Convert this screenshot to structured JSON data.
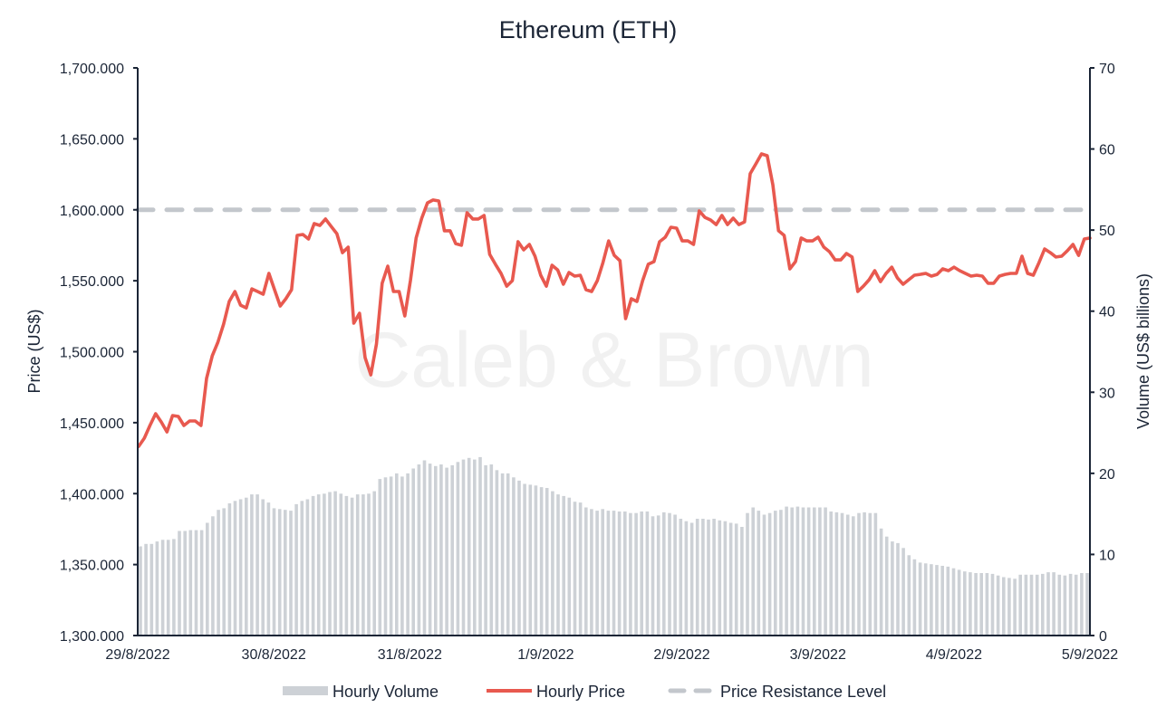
{
  "chart_data": {
    "type": "bar+line",
    "title": "Ethereum (ETH)",
    "watermark": "Caleb & Brown",
    "xlabel": "",
    "ylabel_left": "Price (US$)",
    "ylabel_right": "Volume (US$ billions)",
    "ylim_left": [
      1300,
      1700
    ],
    "ylim_right": [
      0,
      70
    ],
    "yticks_left": [
      "1,300.000",
      "1,350.000",
      "1,400.000",
      "1,450.000",
      "1,500.000",
      "1,550.000",
      "1,600.000",
      "1,650.000",
      "1,700.000"
    ],
    "yticks_right": [
      "0",
      "10",
      "20",
      "30",
      "40",
      "50",
      "60",
      "70"
    ],
    "xticks": [
      "29/8/2022",
      "30/8/2022",
      "31/8/2022",
      "1/9/2022",
      "2/9/2022",
      "3/9/2022",
      "4/9/2022",
      "5/9/2022"
    ],
    "x_range_hours": [
      0,
      168
    ],
    "grid": false,
    "legend_position": "bottom-center",
    "colors": {
      "price": "#e8594f",
      "volume": "#cdd1d6",
      "resistance": "#c3c7cc",
      "axis": "#1b2536"
    },
    "series": [
      {
        "name": "Hourly Volume",
        "type": "bar",
        "unit": "US$ billions",
        "values": [
          11.0,
          11.3,
          11.3,
          11.6,
          11.8,
          11.8,
          11.9,
          12.9,
          12.9,
          13.0,
          13.0,
          13.0,
          13.9,
          14.7,
          15.5,
          15.7,
          16.3,
          16.6,
          16.8,
          17.0,
          17.4,
          17.4,
          16.8,
          16.4,
          15.7,
          15.6,
          15.5,
          15.4,
          16.2,
          16.6,
          16.8,
          17.2,
          17.4,
          17.5,
          17.7,
          17.8,
          17.5,
          17.2,
          17.0,
          17.4,
          17.4,
          17.5,
          17.8,
          19.3,
          19.5,
          19.6,
          20.0,
          19.6,
          20.0,
          20.6,
          21.1,
          21.6,
          21.2,
          20.9,
          21.1,
          20.7,
          21.0,
          21.4,
          21.7,
          21.9,
          21.7,
          22.0,
          21.0,
          21.1,
          20.4,
          20.0,
          20.0,
          19.5,
          19.1,
          18.7,
          18.6,
          18.5,
          18.3,
          18.2,
          17.8,
          17.4,
          17.2,
          17.0,
          16.5,
          16.4,
          15.8,
          15.6,
          15.4,
          15.6,
          15.4,
          15.4,
          15.3,
          15.3,
          15.1,
          15.1,
          15.3,
          15.3,
          14.7,
          14.8,
          15.2,
          15.1,
          14.9,
          14.4,
          14.1,
          13.9,
          14.4,
          14.4,
          14.3,
          14.4,
          14.2,
          14.1,
          13.9,
          13.8,
          13.4,
          15.1,
          15.8,
          15.4,
          14.9,
          15.1,
          15.4,
          15.5,
          15.9,
          15.8,
          15.9,
          15.8,
          15.8,
          15.8,
          15.8,
          15.8,
          15.3,
          15.2,
          15.1,
          14.9,
          14.7,
          15.1,
          15.2,
          15.1,
          15.1,
          13.2,
          12.2,
          11.6,
          11.4,
          10.8,
          9.9,
          9.4,
          9.0,
          8.9,
          8.8,
          8.7,
          8.6,
          8.5,
          8.3,
          8.1,
          7.9,
          7.8,
          7.7,
          7.7,
          7.7,
          7.6,
          7.4,
          7.2,
          7.1,
          7.0,
          7.5,
          7.5,
          7.5,
          7.5,
          7.6,
          7.8,
          7.8,
          7.5,
          7.4,
          7.6,
          7.5,
          7.7,
          7.7
        ]
      },
      {
        "name": "Hourly Price",
        "type": "line",
        "unit": "US$",
        "values": [
          1433.3,
          1439.1,
          1448,
          1456.3,
          1450.5,
          1443.5,
          1455,
          1454.4,
          1448,
          1451.2,
          1451.2,
          1448,
          1481.2,
          1497.1,
          1506.7,
          1519.4,
          1535.4,
          1542.4,
          1532.8,
          1530.9,
          1544.3,
          1542.4,
          1540.5,
          1555.2,
          1543.7,
          1532.2,
          1537.3,
          1543.7,
          1582,
          1582.6,
          1579.4,
          1590.3,
          1589,
          1593.5,
          1588.3,
          1583.2,
          1569.8,
          1573.7,
          1520.1,
          1527.1,
          1495.8,
          1483.7,
          1505.4,
          1548.2,
          1560.3,
          1542.4,
          1542.4,
          1525.2,
          1550.1,
          1580.1,
          1594.1,
          1604.9,
          1606.9,
          1606.2,
          1585.2,
          1585.2,
          1576.2,
          1575,
          1597.9,
          1593.5,
          1593.5,
          1596,
          1568.6,
          1561.6,
          1555.2,
          1546.2,
          1550.1,
          1577.5,
          1571.8,
          1575.6,
          1567.3,
          1553.9,
          1546.2,
          1560.9,
          1557.7,
          1547.5,
          1555.8,
          1553.3,
          1553.9,
          1543.7,
          1542.4,
          1550.1,
          1562.8,
          1578.1,
          1567.9,
          1564.1,
          1523.3,
          1537.3,
          1535.4,
          1550.1,
          1561.6,
          1563.5,
          1577.5,
          1580.7,
          1587.7,
          1587.1,
          1578.1,
          1578.1,
          1575.6,
          1599.2,
          1594.7,
          1592.8,
          1589.6,
          1596,
          1589.6,
          1594.1,
          1589.6,
          1591.5,
          1625.4,
          1632.4,
          1639.4,
          1638.1,
          1617.7,
          1585.2,
          1582,
          1558.4,
          1563.5,
          1580.1,
          1578.1,
          1578.1,
          1580.7,
          1573.7,
          1570.5,
          1564.7,
          1564.7,
          1569.2,
          1566.7,
          1542.4,
          1546.2,
          1550.7,
          1557.1,
          1549.4,
          1555.2,
          1559.6,
          1552,
          1547.5,
          1550.7,
          1553.9,
          1554.5,
          1555.2,
          1553.3,
          1554.5,
          1558.4,
          1557.1,
          1559.6,
          1557.1,
          1555.2,
          1553.3,
          1553.9,
          1553.3,
          1548.2,
          1548.2,
          1553.3,
          1554.5,
          1555.2,
          1555.2,
          1567.3,
          1555.2,
          1553.9,
          1562.8,
          1572.4,
          1569.8,
          1566.7,
          1567.3,
          1571.1,
          1575.6,
          1567.9,
          1579.4,
          1580.1
        ]
      },
      {
        "name": "Price Resistance Level",
        "type": "hline",
        "value": 1600
      }
    ],
    "legend": [
      "Hourly Volume",
      "Hourly Price",
      "Price Resistance Level"
    ]
  }
}
